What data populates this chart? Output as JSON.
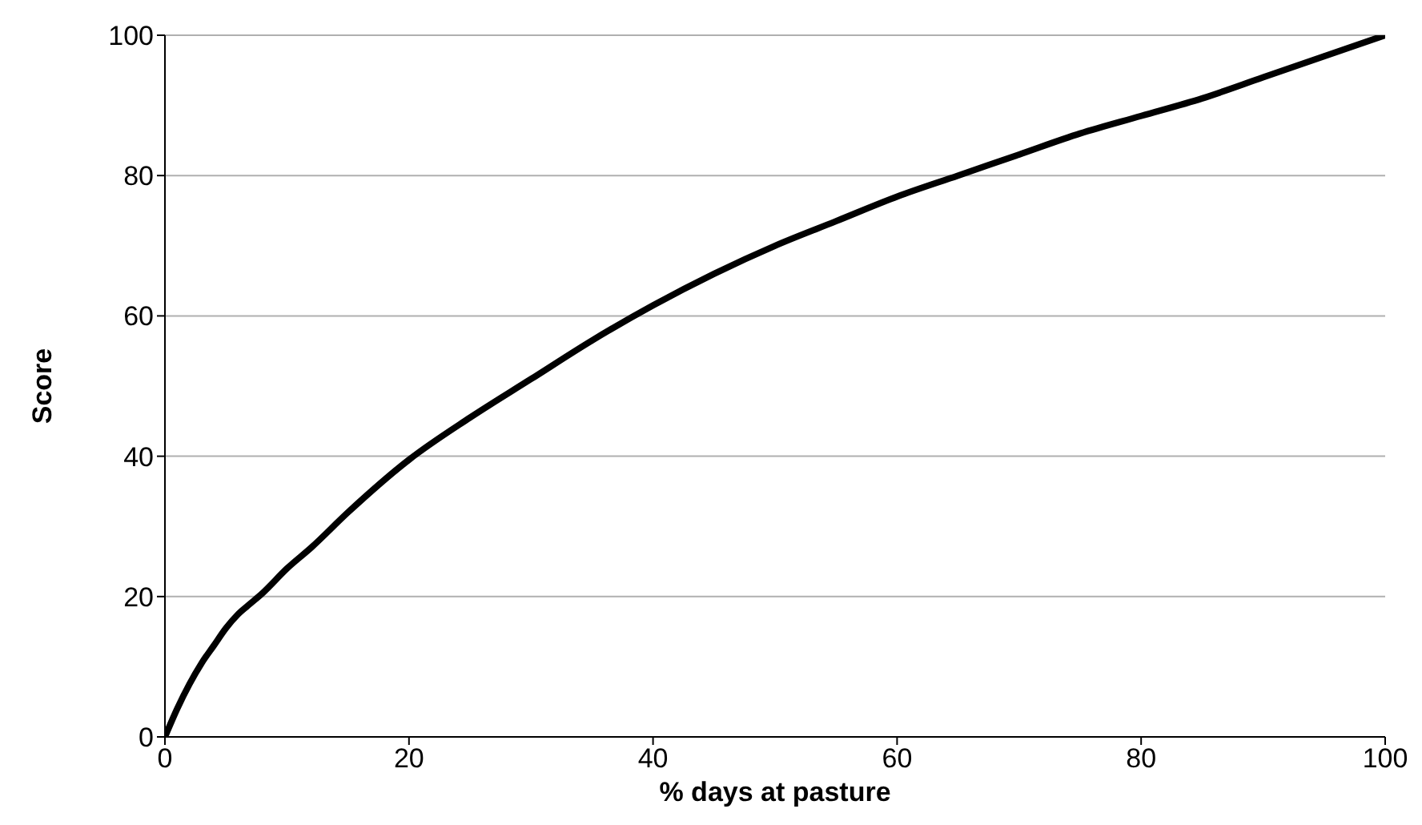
{
  "chart_data": {
    "type": "line",
    "xlabel": "% days at pasture",
    "ylabel": "Score",
    "x": [
      0,
      1,
      2,
      3,
      4,
      5,
      6,
      7,
      8,
      10,
      12,
      15,
      20,
      25,
      30,
      35,
      40,
      45,
      50,
      55,
      60,
      65,
      70,
      75,
      80,
      85,
      90,
      95,
      100
    ],
    "series": [
      {
        "color": "#000000",
        "values": [
          0,
          4,
          7.5,
          10.5,
          13,
          15.5,
          17.5,
          19,
          20.5,
          24,
          27,
          32,
          39.5,
          45.5,
          51,
          56.5,
          61.5,
          66,
          70,
          73.5,
          77,
          80,
          83,
          86,
          88.5,
          91,
          94,
          97,
          100
        ]
      }
    ],
    "xlim": [
      0,
      100
    ],
    "xticks": [
      0,
      20,
      40,
      60,
      80,
      100
    ],
    "ylim": [
      0,
      100
    ],
    "yticks": [
      0,
      20,
      40,
      60,
      80,
      100
    ],
    "grid": "y",
    "legend": false,
    "marker": "none",
    "line_style": "solid"
  }
}
